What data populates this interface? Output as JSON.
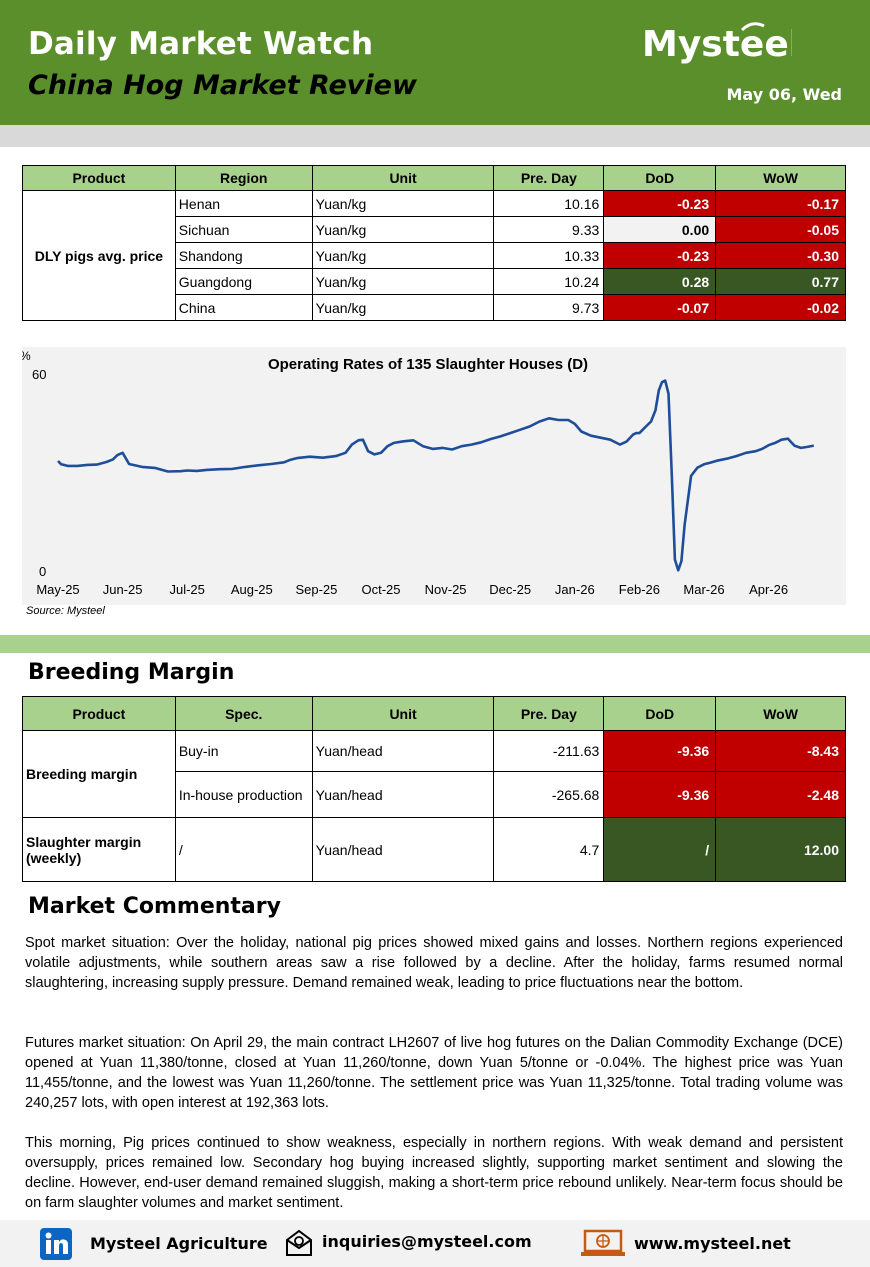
{
  "header": {
    "title": "Daily Market Watch",
    "subtitle": "China Hog Market Review",
    "logo": "Mysteel",
    "date": "May 06, Wed"
  },
  "price_table": {
    "headers": [
      "Product",
      "Region",
      "Unit",
      "Pre. Day",
      "DoD",
      "WoW"
    ],
    "product": "DLY pigs avg. price",
    "rows": [
      {
        "region": "Henan",
        "unit": "Yuan/kg",
        "pre": "10.16",
        "dod": "-0.23",
        "wow": "-0.17"
      },
      {
        "region": "Sichuan",
        "unit": "Yuan/kg",
        "pre": "9.33",
        "dod": "0.00",
        "wow": "-0.05"
      },
      {
        "region": "Shandong",
        "unit": "Yuan/kg",
        "pre": "10.33",
        "dod": "-0.23",
        "wow": "-0.30"
      },
      {
        "region": "Guangdong",
        "unit": "Yuan/kg",
        "pre": "10.24",
        "dod": "0.28",
        "wow": "0.77"
      },
      {
        "region": "China",
        "unit": "Yuan/kg",
        "pre": "9.73",
        "dod": "-0.07",
        "wow": "-0.02"
      }
    ],
    "colors": {
      "negative": "#c00000",
      "positive": "#385723",
      "neutral": "#f2f2f2"
    }
  },
  "chart_data": {
    "type": "line",
    "title": "Operating Rates of 135 Slaughter Houses (D)",
    "ylabel": "%",
    "ylim": [
      0,
      60
    ],
    "yticks": [
      "0",
      "60"
    ],
    "xticks": [
      "May-25",
      "Jun-25",
      "Jul-25",
      "Aug-25",
      "Sep-25",
      "Oct-25",
      "Nov-25",
      "Dec-25",
      "Jan-26",
      "Feb-26",
      "Mar-26",
      "Apr-26"
    ],
    "grid": false,
    "source": "Source: Mysteel",
    "series": [
      {
        "color": "#1f4e99",
        "x": [
          0,
          0.05,
          0.15,
          0.3,
          0.45,
          0.6,
          0.75,
          0.85,
          0.92,
          1.0,
          1.1,
          1.3,
          1.5,
          1.7,
          1.9,
          2.0,
          2.15,
          2.3,
          2.5,
          2.7,
          2.9,
          3.1,
          3.3,
          3.5,
          3.6,
          3.7,
          3.9,
          4.1,
          4.3,
          4.45,
          4.55,
          4.65,
          4.72,
          4.8,
          4.9,
          5.0,
          5.1,
          5.2,
          5.35,
          5.5,
          5.65,
          5.8,
          5.95,
          6.1,
          6.25,
          6.4,
          6.55,
          6.7,
          6.85,
          7.0,
          7.15,
          7.3,
          7.45,
          7.6,
          7.75,
          7.9,
          8.0,
          8.1,
          8.25,
          8.4,
          8.55,
          8.7,
          8.8,
          8.9,
          8.95,
          9.0,
          9.05,
          9.1,
          9.18,
          9.25,
          9.3,
          9.35,
          9.4,
          9.45,
          9.5,
          9.55,
          9.6,
          9.65,
          9.7,
          9.8,
          9.9,
          10.0,
          10.1,
          10.2,
          10.35,
          10.5,
          10.65,
          10.8,
          10.9,
          11.0,
          11.1,
          11.2,
          11.3,
          11.4,
          11.5,
          11.6,
          11.7
        ],
        "values": [
          33.5,
          32.5,
          32.0,
          32.0,
          32.3,
          32.4,
          33.2,
          34.0,
          35.3,
          36.0,
          32.6,
          31.7,
          31.4,
          30.3,
          30.4,
          30.6,
          30.5,
          30.8,
          31.0,
          31.1,
          31.7,
          32.2,
          32.6,
          33.1,
          33.9,
          34.4,
          34.8,
          34.5,
          35.0,
          36.0,
          38.5,
          39.8,
          40.0,
          36.5,
          35.5,
          36.0,
          38.0,
          39.0,
          39.5,
          39.8,
          38.0,
          37.2,
          37.5,
          37.0,
          38.0,
          38.5,
          39.2,
          40.2,
          41.0,
          42.0,
          43.0,
          44.0,
          45.5,
          46.5,
          46.0,
          46.0,
          44.8,
          42.5,
          41.2,
          40.6,
          40.0,
          38.5,
          39.4,
          41.5,
          42.0,
          42.0,
          43.0,
          44.0,
          45.5,
          49.0,
          55.0,
          57.5,
          58.0,
          54.0,
          30.0,
          3.5,
          0.2,
          3.0,
          14.0,
          29.0,
          31.5,
          32.5,
          33.0,
          33.6,
          34.2,
          35.0,
          36.0,
          36.5,
          37.2,
          38.3,
          39.0,
          40.0,
          40.3,
          38.2,
          37.5,
          37.8,
          38.2
        ]
      }
    ]
  },
  "breeding": {
    "section_title": "Breeding Margin",
    "headers": [
      "Product",
      "Spec.",
      "Unit",
      "Pre. Day",
      "DoD",
      "WoW"
    ],
    "product1": "Breeding margin",
    "rows": [
      {
        "spec": "Buy-in",
        "unit": "Yuan/head",
        "pre": "-211.63",
        "dod": "-9.36",
        "wow": "-8.43"
      },
      {
        "spec": "In-house production",
        "unit": "Yuan/head",
        "pre": "-265.68",
        "dod": "-9.36",
        "wow": "-2.48"
      }
    ],
    "product2": "Slaughter margin (weekly)",
    "row3": {
      "spec": "/",
      "unit": "Yuan/head",
      "pre": "4.7",
      "dod": "/",
      "wow": "12.00"
    }
  },
  "commentary": {
    "title": "Market Commentary",
    "p1": "Spot market situation: Over the holiday, national pig prices showed mixed gains and losses. Northern regions experienced volatile adjustments, while southern areas saw a rise followed by a decline. After the holiday, farms resumed normal slaughtering, increasing supply pressure. Demand remained weak, leading to price fluctuations near the bottom.",
    "p2": "Futures market situation: On April 29, the main contract LH2607 of live hog futures on the Dalian Commodity Exchange (DCE) opened at Yuan 11,380/tonne, closed at Yuan 11,260/tonne, down Yuan 5/tonne or -0.04%. The highest price was Yuan 11,455/tonne, and the lowest was Yuan 11,260/tonne. The settlement price was Yuan 11,325/tonne. Total trading volume was 240,257 lots, with open interest at 192,363 lots.",
    "p3": "This morning, Pig prices continued to show weakness, especially in northern regions. With weak demand and persistent oversupply, prices remained low. Secondary hog buying increased slightly, supporting market sentiment and slowing the decline. However, end-user demand remained sluggish, making a short-term price rebound unlikely. Near-term focus should be on farm slaughter volumes and market sentiment."
  },
  "footer": {
    "linkedin_icon": "linkedin-icon",
    "linkedin": "Mysteel Agriculture",
    "email_icon": "email-icon",
    "email": "inquiries@mysteel.com",
    "web_icon": "web-icon",
    "web": "www.mysteel.net"
  }
}
